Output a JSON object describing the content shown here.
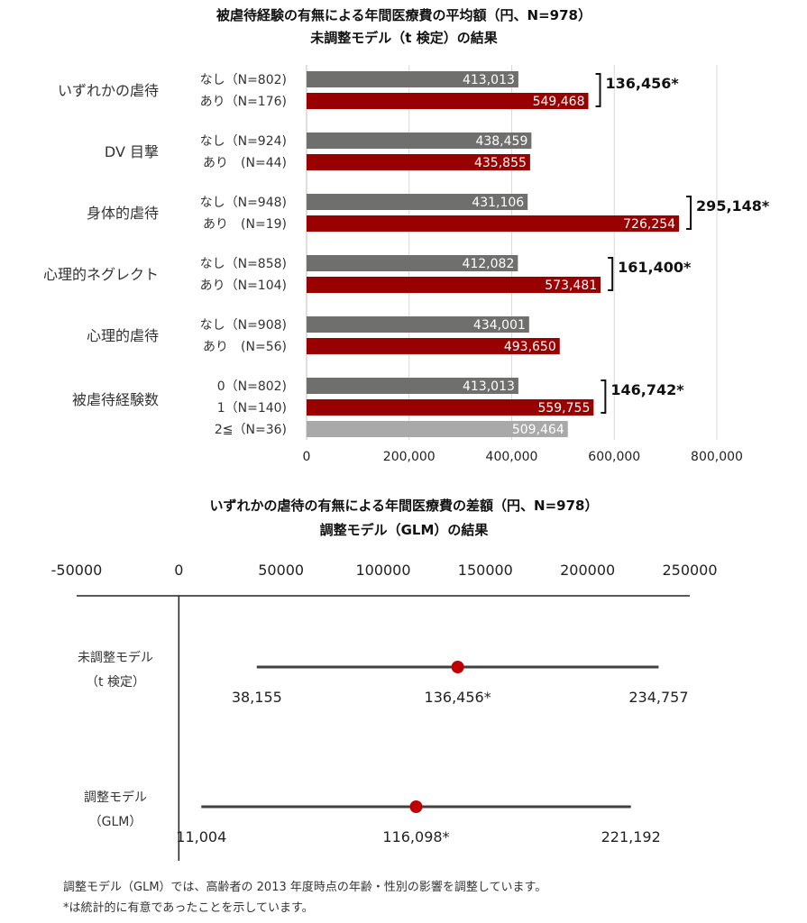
{
  "colors": {
    "none": "#6f706e",
    "abuse": "#990000",
    "multi": "#a9a9a9",
    "point": "#c00000"
  },
  "chart_data": [
    {
      "type": "bar",
      "orientation": "horizontal",
      "title_line1": "被虐待経験の有無による年間医療費の平均額（円、N=978）",
      "title_line2": "未調整モデル（t 検定）の結果",
      "xlim": [
        0,
        800000
      ],
      "x_ticks": [
        "0",
        "200,000",
        "400,000",
        "600,000",
        "800,000"
      ],
      "grid": true,
      "groups": [
        {
          "category": "いずれかの虐待",
          "bars": [
            {
              "label": "なし（N=802)",
              "value": 413013,
              "value_text": "413,013",
              "color": "none"
            },
            {
              "label": "あり（N=176)",
              "value": 549468,
              "value_text": "549,468",
              "color": "abuse"
            }
          ],
          "difference": "136,456*"
        },
        {
          "category": "DV 目撃",
          "bars": [
            {
              "label": "なし（N=924)",
              "value": 438459,
              "value_text": "438,459",
              "color": "none"
            },
            {
              "label": "あり　(N=44)",
              "value": 435855,
              "value_text": "435,855",
              "color": "abuse"
            }
          ],
          "difference": ""
        },
        {
          "category": "身体的虐待",
          "bars": [
            {
              "label": "なし（N=948)",
              "value": 431106,
              "value_text": "431,106",
              "color": "none"
            },
            {
              "label": "あり　(N=19)",
              "value": 726254,
              "value_text": "726,254",
              "color": "abuse"
            }
          ],
          "difference": "295,148*"
        },
        {
          "category": "心理的ネグレクト",
          "bars": [
            {
              "label": "なし（N=858)",
              "value": 412082,
              "value_text": "412,082",
              "color": "none"
            },
            {
              "label": "あり（N=104)",
              "value": 573481,
              "value_text": "573,481",
              "color": "abuse"
            }
          ],
          "difference": "161,400*"
        },
        {
          "category": "心理的虐待",
          "bars": [
            {
              "label": "なし（N=908)",
              "value": 434001,
              "value_text": "434,001",
              "color": "none"
            },
            {
              "label": "あり　(N=56)",
              "value": 493650,
              "value_text": "493,650",
              "color": "abuse"
            }
          ],
          "difference": ""
        },
        {
          "category": "被虐待経験数",
          "bars": [
            {
              "label": "0（N=802)",
              "value": 413013,
              "value_text": "413,013",
              "color": "none"
            },
            {
              "label": "1（N=140)",
              "value": 559755,
              "value_text": "559,755",
              "color": "abuse"
            },
            {
              "label": "2≦（N=36)",
              "value": 509464,
              "value_text": "509,464",
              "color": "multi"
            }
          ],
          "difference": "146,742*"
        }
      ]
    },
    {
      "type": "scatter",
      "subtype": "forest",
      "title_line1": "いずれかの虐待の有無による年間医療費の差額（円、N=978）",
      "title_line2": "調整モデル（GLM）の結果",
      "xlim": [
        -50000,
        250000
      ],
      "x_ticks": [
        "-50000",
        "0",
        "50000",
        "100000",
        "150000",
        "200000",
        "250000"
      ],
      "rows": [
        {
          "model_line1": "未調整モデル",
          "model_line2": "（t 検定）",
          "estimate": 136456,
          "lower": 38155,
          "upper": 234757,
          "estimate_text": "136,456*",
          "lower_text": "38,155",
          "upper_text": "234,757"
        },
        {
          "model_line1": "調整モデル",
          "model_line2": "（GLM）",
          "estimate": 116098,
          "lower": 11004,
          "upper": 221192,
          "estimate_text": "116,098*",
          "lower_text": "11,004",
          "upper_text": "221,192"
        }
      ],
      "notes": [
        "調整モデル（GLM）では、高齢者の 2013 年度時点の年齢・性別の影響を調整しています。",
        "*は統計的に有意であったことを示しています。"
      ]
    }
  ]
}
